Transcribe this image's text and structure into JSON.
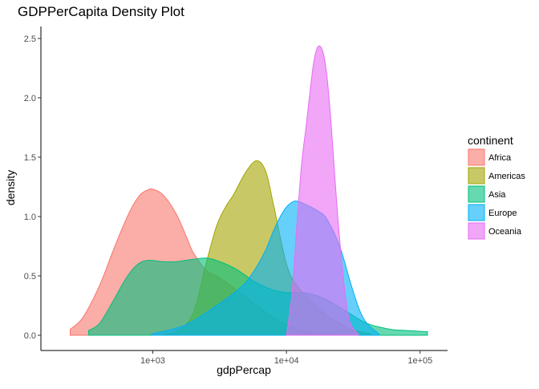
{
  "chart_data": {
    "type": "area",
    "title": "GDPPerCapita Density Plot",
    "xlabel": "gdpPercap",
    "ylabel": "density",
    "x_scale": "log10",
    "xlim": [
      200,
      120000
    ],
    "ylim": [
      0,
      2.55
    ],
    "x_ticks": [
      {
        "value": 1000,
        "label": "1e+03"
      },
      {
        "value": 10000,
        "label": "1e+04"
      },
      {
        "value": 100000,
        "label": "1e+05"
      }
    ],
    "y_ticks": [
      {
        "value": 0.0,
        "label": "0.0"
      },
      {
        "value": 0.5,
        "label": "0.5"
      },
      {
        "value": 1.0,
        "label": "1.0"
      },
      {
        "value": 1.5,
        "label": "1.5"
      },
      {
        "value": 2.0,
        "label": "2.0"
      },
      {
        "value": 2.5,
        "label": "2.5"
      }
    ],
    "grid": false,
    "legend": {
      "title": "continent",
      "position": "right"
    },
    "series": [
      {
        "name": "Africa",
        "color": "#F8766D",
        "x": [
          241,
          300,
          400,
          500,
          600,
          700,
          800,
          900,
          1000,
          1200,
          1500,
          1800,
          2000,
          2500,
          3000,
          3500,
          4000,
          5000,
          6000,
          8000,
          10000,
          13000,
          16000,
          21951
        ],
        "y": [
          0.05,
          0.15,
          0.42,
          0.7,
          0.92,
          1.08,
          1.18,
          1.22,
          1.23,
          1.18,
          1.02,
          0.82,
          0.7,
          0.55,
          0.5,
          0.45,
          0.4,
          0.32,
          0.25,
          0.15,
          0.09,
          0.04,
          0.02,
          0.01
        ]
      },
      {
        "name": "Americas",
        "color": "#A3A500",
        "x": [
          1200,
          1500,
          2000,
          2500,
          3000,
          3500,
          4000,
          5000,
          6000,
          7000,
          8000,
          10000,
          12000,
          15000,
          20000,
          25000,
          30000,
          42952
        ],
        "y": [
          0.01,
          0.03,
          0.18,
          0.6,
          0.92,
          1.08,
          1.18,
          1.38,
          1.47,
          1.38,
          1.1,
          0.6,
          0.42,
          0.3,
          0.17,
          0.1,
          0.05,
          0.01
        ]
      },
      {
        "name": "Asia",
        "color": "#00BF7D",
        "x": [
          331,
          400,
          500,
          600,
          700,
          800,
          900,
          1000,
          1200,
          1500,
          2000,
          2500,
          3000,
          4000,
          5000,
          6000,
          8000,
          10000,
          12000,
          15000,
          20000,
          30000,
          40000,
          60000,
          80000,
          113523
        ],
        "y": [
          0.04,
          0.1,
          0.28,
          0.44,
          0.55,
          0.61,
          0.63,
          0.63,
          0.62,
          0.62,
          0.64,
          0.65,
          0.63,
          0.57,
          0.5,
          0.44,
          0.38,
          0.36,
          0.36,
          0.35,
          0.3,
          0.18,
          0.1,
          0.05,
          0.04,
          0.03
        ]
      },
      {
        "name": "Europe",
        "color": "#00B0F6",
        "x": [
          973,
          1500,
          2000,
          3000,
          4000,
          5000,
          6000,
          7000,
          8000,
          9000,
          10000,
          11000,
          12000,
          14000,
          17000,
          20000,
          25000,
          30000,
          35000,
          40000,
          49357
        ],
        "y": [
          0.01,
          0.06,
          0.12,
          0.25,
          0.35,
          0.45,
          0.58,
          0.72,
          0.88,
          1.0,
          1.08,
          1.12,
          1.13,
          1.1,
          1.05,
          0.98,
          0.75,
          0.45,
          0.22,
          0.1,
          0.01
        ]
      },
      {
        "name": "Oceania",
        "color": "#E76BF3",
        "x": [
          10040,
          11000,
          12000,
          13000,
          14000,
          15000,
          16000,
          17000,
          18000,
          19000,
          20000,
          21000,
          22000,
          24000,
          26000,
          28000,
          30000,
          34435
        ],
        "y": [
          0.01,
          0.35,
          0.95,
          1.45,
          1.75,
          2.05,
          2.3,
          2.42,
          2.43,
          2.36,
          2.2,
          1.95,
          1.65,
          1.05,
          0.6,
          0.28,
          0.1,
          0.01
        ]
      }
    ]
  }
}
